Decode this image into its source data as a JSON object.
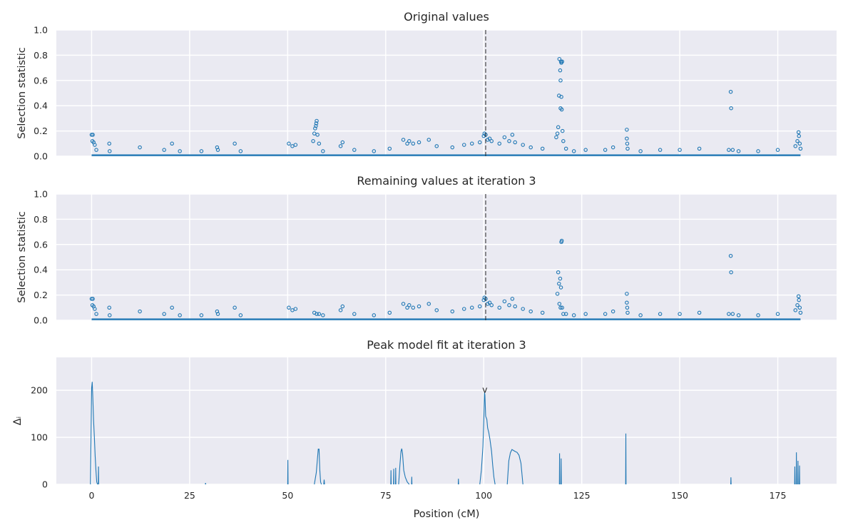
{
  "figure": {
    "accent_color": "#1f77b4",
    "panel_background": "#eaeaf2",
    "grid_color": "#ffffff",
    "xlabel": "Position (cM)",
    "x_ticks": [
      0,
      25,
      50,
      75,
      100,
      125,
      150,
      175
    ],
    "xlim": [
      -9,
      190
    ],
    "grid": true
  },
  "chart_data": [
    {
      "type": "scatter",
      "title": "Original values",
      "xlabel": "",
      "ylabel": "Selection statistic",
      "ylim": [
        0,
        1
      ],
      "y_ticks": [
        0.0,
        0.2,
        0.4,
        0.6,
        0.8,
        1.0
      ],
      "y_tick_labels": [
        "0.0",
        "0.2",
        "0.4",
        "0.6",
        "0.8",
        "1.0"
      ],
      "marker": "open-circle",
      "vline": 100.5,
      "points": [
        [
          0,
          0.17
        ],
        [
          0.3,
          0.17
        ],
        [
          0.2,
          0.12
        ],
        [
          0.5,
          0.11
        ],
        [
          0.8,
          0.09
        ],
        [
          1.2,
          0.05
        ],
        [
          4.5,
          0.1
        ],
        [
          4.6,
          0.04
        ],
        [
          12.3,
          0.07
        ],
        [
          18.5,
          0.05
        ],
        [
          20.5,
          0.1
        ],
        [
          22.5,
          0.04
        ],
        [
          28,
          0.04
        ],
        [
          32,
          0.07
        ],
        [
          32.2,
          0.05
        ],
        [
          36.5,
          0.1
        ],
        [
          38,
          0.04
        ],
        [
          50.3,
          0.1
        ],
        [
          51.2,
          0.08
        ],
        [
          52,
          0.09
        ],
        [
          56.5,
          0.12
        ],
        [
          56.8,
          0.18
        ],
        [
          57.0,
          0.22
        ],
        [
          57.2,
          0.24
        ],
        [
          57.3,
          0.26
        ],
        [
          57.4,
          0.28
        ],
        [
          57.6,
          0.17
        ],
        [
          58,
          0.1
        ],
        [
          59,
          0.04
        ],
        [
          63.5,
          0.08
        ],
        [
          64.0,
          0.11
        ],
        [
          67,
          0.05
        ],
        [
          72,
          0.04
        ],
        [
          76,
          0.06
        ],
        [
          79.5,
          0.13
        ],
        [
          80.5,
          0.1
        ],
        [
          81.0,
          0.12
        ],
        [
          82,
          0.1
        ],
        [
          83.5,
          0.11
        ],
        [
          86,
          0.13
        ],
        [
          88,
          0.08
        ],
        [
          92,
          0.07
        ],
        [
          95,
          0.09
        ],
        [
          97,
          0.1
        ],
        [
          99,
          0.11
        ],
        [
          100,
          0.16
        ],
        [
          100.2,
          0.18
        ],
        [
          100.5,
          0.17
        ],
        [
          101,
          0.13
        ],
        [
          101.5,
          0.14
        ],
        [
          102,
          0.12
        ],
        [
          104,
          0.1
        ],
        [
          105.3,
          0.15
        ],
        [
          106.5,
          0.12
        ],
        [
          107.3,
          0.17
        ],
        [
          108,
          0.11
        ],
        [
          110,
          0.09
        ],
        [
          112,
          0.07
        ],
        [
          115,
          0.06
        ],
        [
          118.5,
          0.15
        ],
        [
          118.8,
          0.18
        ],
        [
          119.0,
          0.23
        ],
        [
          119.2,
          0.48
        ],
        [
          119.3,
          0.77
        ],
        [
          119.5,
          0.68
        ],
        [
          119.6,
          0.6
        ],
        [
          119.6,
          0.38
        ],
        [
          119.7,
          0.75
        ],
        [
          119.8,
          0.74
        ],
        [
          119.8,
          0.47
        ],
        [
          119.9,
          0.37
        ],
        [
          120,
          0.75
        ],
        [
          120.1,
          0.2
        ],
        [
          120.3,
          0.12
        ],
        [
          121,
          0.06
        ],
        [
          123,
          0.04
        ],
        [
          126,
          0.05
        ],
        [
          131,
          0.05
        ],
        [
          133,
          0.07
        ],
        [
          136.5,
          0.21
        ],
        [
          136.5,
          0.14
        ],
        [
          136.6,
          0.1
        ],
        [
          136.7,
          0.06
        ],
        [
          140,
          0.04
        ],
        [
          145,
          0.05
        ],
        [
          150,
          0.05
        ],
        [
          155,
          0.06
        ],
        [
          163,
          0.51
        ],
        [
          163.1,
          0.38
        ],
        [
          162.5,
          0.05
        ],
        [
          163.5,
          0.05
        ],
        [
          165,
          0.04
        ],
        [
          170,
          0.04
        ],
        [
          175,
          0.05
        ],
        [
          179.5,
          0.08
        ],
        [
          180,
          0.12
        ],
        [
          180.3,
          0.19
        ],
        [
          180.4,
          0.16
        ],
        [
          180.6,
          0.1
        ],
        [
          180.8,
          0.06
        ]
      ]
    },
    {
      "type": "scatter",
      "title": "Remaining values at iteration 3",
      "xlabel": "",
      "ylabel": "Selection statistic",
      "ylim": [
        0,
        1
      ],
      "y_ticks": [
        0.0,
        0.2,
        0.4,
        0.6,
        0.8,
        1.0
      ],
      "y_tick_labels": [
        "0.0",
        "0.2",
        "0.4",
        "0.6",
        "0.8",
        "1.0"
      ],
      "marker": "open-circle",
      "vline": 100.5,
      "points": [
        [
          0,
          0.17
        ],
        [
          0.3,
          0.17
        ],
        [
          0.2,
          0.12
        ],
        [
          0.5,
          0.11
        ],
        [
          0.8,
          0.09
        ],
        [
          1.2,
          0.05
        ],
        [
          4.5,
          0.1
        ],
        [
          4.6,
          0.04
        ],
        [
          12.3,
          0.07
        ],
        [
          18.5,
          0.05
        ],
        [
          20.5,
          0.1
        ],
        [
          22.5,
          0.04
        ],
        [
          28,
          0.04
        ],
        [
          32,
          0.07
        ],
        [
          32.2,
          0.05
        ],
        [
          36.5,
          0.1
        ],
        [
          38,
          0.04
        ],
        [
          50.3,
          0.1
        ],
        [
          51.2,
          0.08
        ],
        [
          52,
          0.09
        ],
        [
          56.8,
          0.06
        ],
        [
          57.4,
          0.05
        ],
        [
          58,
          0.05
        ],
        [
          59,
          0.04
        ],
        [
          63.5,
          0.08
        ],
        [
          64.0,
          0.11
        ],
        [
          67,
          0.05
        ],
        [
          72,
          0.04
        ],
        [
          76,
          0.06
        ],
        [
          79.5,
          0.13
        ],
        [
          80.5,
          0.1
        ],
        [
          81.0,
          0.12
        ],
        [
          82,
          0.1
        ],
        [
          83.5,
          0.11
        ],
        [
          86,
          0.13
        ],
        [
          88,
          0.08
        ],
        [
          92,
          0.07
        ],
        [
          95,
          0.09
        ],
        [
          97,
          0.1
        ],
        [
          99,
          0.11
        ],
        [
          100,
          0.16
        ],
        [
          100.2,
          0.18
        ],
        [
          100.5,
          0.17
        ],
        [
          101,
          0.13
        ],
        [
          101.5,
          0.14
        ],
        [
          102,
          0.12
        ],
        [
          104,
          0.1
        ],
        [
          105.3,
          0.15
        ],
        [
          106.5,
          0.12
        ],
        [
          107.3,
          0.17
        ],
        [
          108,
          0.11
        ],
        [
          110,
          0.09
        ],
        [
          112,
          0.07
        ],
        [
          115,
          0.06
        ],
        [
          118.8,
          0.21
        ],
        [
          119.0,
          0.38
        ],
        [
          119.2,
          0.29
        ],
        [
          119.3,
          0.13
        ],
        [
          119.5,
          0.33
        ],
        [
          119.6,
          0.1
        ],
        [
          119.7,
          0.26
        ],
        [
          119.8,
          0.62
        ],
        [
          119.9,
          0.63
        ],
        [
          120,
          0.1
        ],
        [
          120.3,
          0.05
        ],
        [
          121,
          0.05
        ],
        [
          123,
          0.04
        ],
        [
          126,
          0.05
        ],
        [
          131,
          0.05
        ],
        [
          133,
          0.07
        ],
        [
          136.5,
          0.21
        ],
        [
          136.5,
          0.14
        ],
        [
          136.6,
          0.1
        ],
        [
          136.7,
          0.06
        ],
        [
          140,
          0.04
        ],
        [
          145,
          0.05
        ],
        [
          150,
          0.05
        ],
        [
          155,
          0.06
        ],
        [
          163,
          0.51
        ],
        [
          163.1,
          0.38
        ],
        [
          162.5,
          0.05
        ],
        [
          163.5,
          0.05
        ],
        [
          165,
          0.04
        ],
        [
          170,
          0.04
        ],
        [
          175,
          0.05
        ],
        [
          179.5,
          0.08
        ],
        [
          180,
          0.12
        ],
        [
          180.3,
          0.19
        ],
        [
          180.4,
          0.16
        ],
        [
          180.6,
          0.1
        ],
        [
          180.8,
          0.06
        ]
      ]
    },
    {
      "type": "line",
      "title": "Peak model fit at iteration 3",
      "xlabel": "Position (cM)",
      "ylabel": "Δᵢ",
      "ylim": [
        0,
        270
      ],
      "y_ticks": [
        0,
        100,
        200
      ],
      "y_tick_labels": [
        "0",
        "100",
        "200"
      ],
      "marker_annotation": {
        "x": 100.3,
        "y": 198,
        "text": "v"
      },
      "segments": [
        [
          [
            -0.3,
            0
          ],
          [
            0.0,
            205
          ],
          [
            0.15,
            218
          ],
          [
            0.3,
            185
          ],
          [
            0.5,
            135
          ],
          [
            0.7,
            100
          ],
          [
            0.9,
            60
          ],
          [
            1.1,
            30
          ],
          [
            1.3,
            5
          ],
          [
            1.5,
            0
          ]
        ],
        [
          [
            1.7,
            0
          ],
          [
            1.75,
            38
          ],
          [
            1.8,
            0
          ]
        ],
        [
          [
            29.0,
            0
          ],
          [
            29.05,
            3
          ],
          [
            29.1,
            0
          ]
        ],
        [
          [
            50.0,
            0
          ],
          [
            50.05,
            52
          ],
          [
            50.1,
            0
          ]
        ],
        [
          [
            56.8,
            0
          ],
          [
            57.3,
            25
          ],
          [
            57.6,
            55
          ],
          [
            57.8,
            75
          ],
          [
            58.0,
            75
          ],
          [
            58.2,
            30
          ],
          [
            58.4,
            5
          ],
          [
            58.6,
            0
          ]
        ],
        [
          [
            59.2,
            0
          ],
          [
            59.3,
            10
          ],
          [
            59.4,
            0
          ]
        ],
        [
          [
            76.3,
            0
          ],
          [
            76.35,
            30
          ],
          [
            76.4,
            0
          ]
        ],
        [
          [
            77.0,
            0
          ],
          [
            77.05,
            33
          ],
          [
            77.1,
            0
          ]
        ],
        [
          [
            77.5,
            0
          ],
          [
            77.55,
            35
          ],
          [
            77.6,
            0
          ]
        ],
        [
          [
            78.3,
            0
          ],
          [
            78.6,
            38
          ],
          [
            78.9,
            70
          ],
          [
            79.1,
            76
          ],
          [
            79.3,
            65
          ],
          [
            79.6,
            30
          ],
          [
            80.0,
            15
          ],
          [
            80.5,
            5
          ],
          [
            81.0,
            0
          ]
        ],
        [
          [
            81.6,
            0
          ],
          [
            81.65,
            16
          ],
          [
            81.7,
            0
          ]
        ],
        [
          [
            93.5,
            0
          ],
          [
            93.55,
            12
          ],
          [
            93.6,
            0
          ]
        ],
        [
          [
            99.0,
            0
          ],
          [
            99.4,
            30
          ],
          [
            99.8,
            80
          ],
          [
            100.0,
            130
          ],
          [
            100.2,
            195
          ],
          [
            100.3,
            190
          ],
          [
            100.5,
            145
          ],
          [
            100.8,
            138
          ],
          [
            101.0,
            120
          ],
          [
            101.3,
            110
          ],
          [
            101.6,
            95
          ],
          [
            102.0,
            70
          ],
          [
            102.3,
            40
          ],
          [
            102.6,
            15
          ],
          [
            102.9,
            0
          ]
        ],
        [
          [
            106.0,
            0
          ],
          [
            106.4,
            50
          ],
          [
            106.8,
            67
          ],
          [
            107.2,
            74
          ],
          [
            107.6,
            72
          ],
          [
            108.0,
            70
          ],
          [
            108.5,
            68
          ],
          [
            109.0,
            62
          ],
          [
            109.5,
            45
          ],
          [
            110.0,
            0
          ]
        ],
        [
          [
            119.3,
            0
          ],
          [
            119.35,
            66
          ],
          [
            119.4,
            0
          ]
        ],
        [
          [
            119.7,
            0
          ],
          [
            119.75,
            55
          ],
          [
            119.8,
            0
          ]
        ],
        [
          [
            136.2,
            0
          ],
          [
            136.25,
            108
          ],
          [
            136.3,
            0
          ]
        ],
        [
          [
            163.0,
            0
          ],
          [
            163.05,
            15
          ],
          [
            163.1,
            0
          ]
        ],
        [
          [
            179.3,
            0
          ],
          [
            179.35,
            38
          ],
          [
            179.4,
            0
          ]
        ],
        [
          [
            179.7,
            0
          ],
          [
            179.75,
            68
          ],
          [
            179.8,
            0
          ]
        ],
        [
          [
            180.1,
            0
          ],
          [
            180.15,
            50
          ],
          [
            180.2,
            0
          ]
        ],
        [
          [
            180.5,
            0
          ],
          [
            180.55,
            40
          ],
          [
            180.6,
            0
          ]
        ]
      ]
    }
  ]
}
